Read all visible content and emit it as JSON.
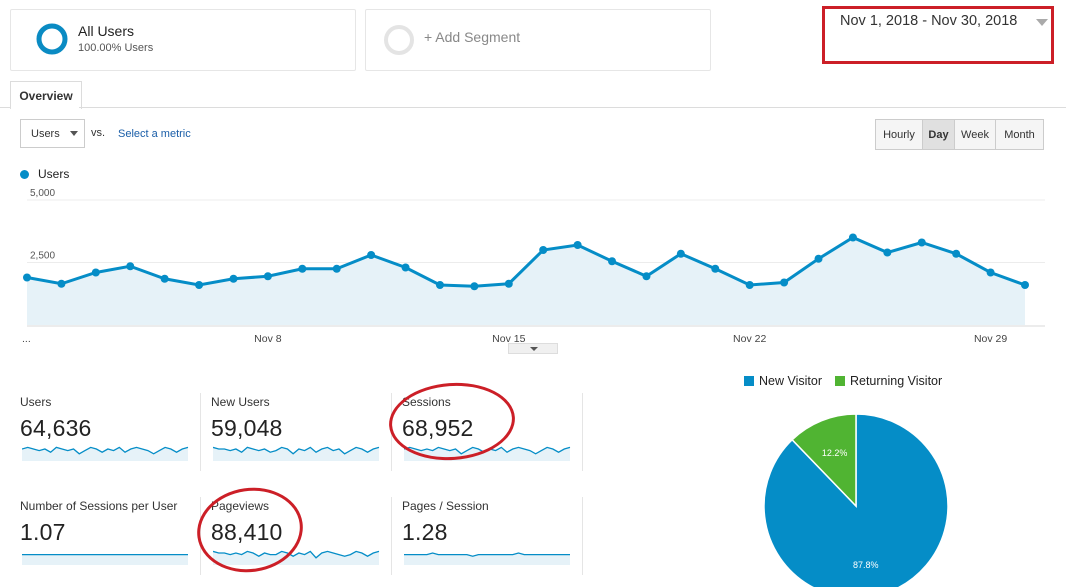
{
  "segments": {
    "all_users": {
      "title": "All Users",
      "subtitle": "100.00% Users"
    },
    "add_segment": {
      "label": "+ Add Segment"
    }
  },
  "date_range": {
    "label": "Nov 1, 2018 - Nov 30, 2018"
  },
  "tabs": [
    {
      "label": "Overview"
    }
  ],
  "controls": {
    "metric_select": "Users",
    "vs_label": "vs.",
    "select_metric_link": "Select a metric",
    "granularity": [
      "Hourly",
      "Day",
      "Week",
      "Month"
    ],
    "granularity_active": "Day"
  },
  "chart_data": {
    "type": "area",
    "series": [
      {
        "name": "Users",
        "values": [
          1900,
          1650,
          2100,
          2350,
          1850,
          1600,
          1850,
          1950,
          2250,
          2250,
          2800,
          2300,
          1600,
          1550,
          1650,
          3000,
          3200,
          2550,
          1950,
          2850,
          2250,
          1600,
          1700,
          2650,
          3500,
          2900,
          3300,
          2850,
          2100,
          1600
        ]
      }
    ],
    "x": [
      1,
      2,
      3,
      4,
      5,
      6,
      7,
      8,
      9,
      10,
      11,
      12,
      13,
      14,
      15,
      16,
      17,
      18,
      19,
      20,
      21,
      22,
      23,
      24,
      25,
      26,
      27,
      28,
      29,
      30
    ],
    "x_tick_labels": [
      "...",
      "Nov 8",
      "Nov 15",
      "Nov 22",
      "Nov 29"
    ],
    "y_tick_labels": [
      "5,000",
      "2,500"
    ],
    "ylim": [
      0,
      5000
    ],
    "legend": "top-left",
    "color": "#058dc7"
  },
  "metrics": [
    {
      "label": "Users",
      "value": "64,636"
    },
    {
      "label": "New Users",
      "value": "59,048"
    },
    {
      "label": "Sessions",
      "value": "68,952"
    },
    {
      "label": "Number of Sessions per User",
      "value": "1.07"
    },
    {
      "label": "Pageviews",
      "value": "88,410"
    },
    {
      "label": "Pages / Session",
      "value": "1.28"
    }
  ],
  "pie": {
    "legend": [
      {
        "label": "New Visitor",
        "color": "#058dc7"
      },
      {
        "label": "Returning Visitor",
        "color": "#50b432"
      }
    ],
    "slices": [
      {
        "label": "87.8%",
        "value": 87.8,
        "color": "#058dc7"
      },
      {
        "label": "12.2%",
        "value": 12.2,
        "color": "#50b432"
      }
    ]
  }
}
